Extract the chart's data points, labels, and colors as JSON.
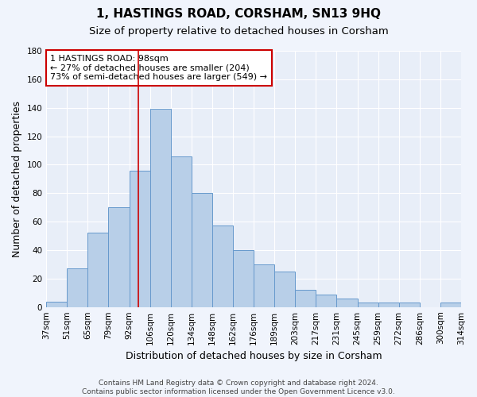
{
  "title": "1, HASTINGS ROAD, CORSHAM, SN13 9HQ",
  "subtitle": "Size of property relative to detached houses in Corsham",
  "xlabel": "Distribution of detached houses by size in Corsham",
  "ylabel": "Number of detached properties",
  "bar_labels": [
    "37sqm",
    "51sqm",
    "65sqm",
    "79sqm",
    "92sqm",
    "106sqm",
    "120sqm",
    "134sqm",
    "148sqm",
    "162sqm",
    "176sqm",
    "189sqm",
    "203sqm",
    "217sqm",
    "231sqm",
    "245sqm",
    "259sqm",
    "272sqm",
    "286sqm",
    "300sqm",
    "314sqm"
  ],
  "bar_values": [
    4,
    27,
    52,
    70,
    96,
    139,
    106,
    80,
    57,
    40,
    30,
    25,
    12,
    9,
    6,
    3,
    3,
    3,
    0,
    3
  ],
  "bar_color": "#b8cfe8",
  "bar_edge_color": "#6699cc",
  "background_color": "#e8eef8",
  "grid_color": "#ffffff",
  "fig_facecolor": "#f0f4fc",
  "vline_color": "#cc0000",
  "annotation_text": "1 HASTINGS ROAD: 98sqm\n← 27% of detached houses are smaller (204)\n73% of semi-detached houses are larger (549) →",
  "annotation_box_color": "#ffffff",
  "annotation_box_edge": "#cc0000",
  "ylim": [
    0,
    180
  ],
  "yticks": [
    0,
    20,
    40,
    60,
    80,
    100,
    120,
    140,
    160,
    180
  ],
  "footnote": "Contains HM Land Registry data © Crown copyright and database right 2024.\nContains public sector information licensed under the Open Government Licence v3.0.",
  "title_fontsize": 11,
  "subtitle_fontsize": 9.5,
  "xlabel_fontsize": 9,
  "ylabel_fontsize": 9,
  "tick_fontsize": 7.5,
  "annot_fontsize": 8,
  "footnote_fontsize": 6.5
}
